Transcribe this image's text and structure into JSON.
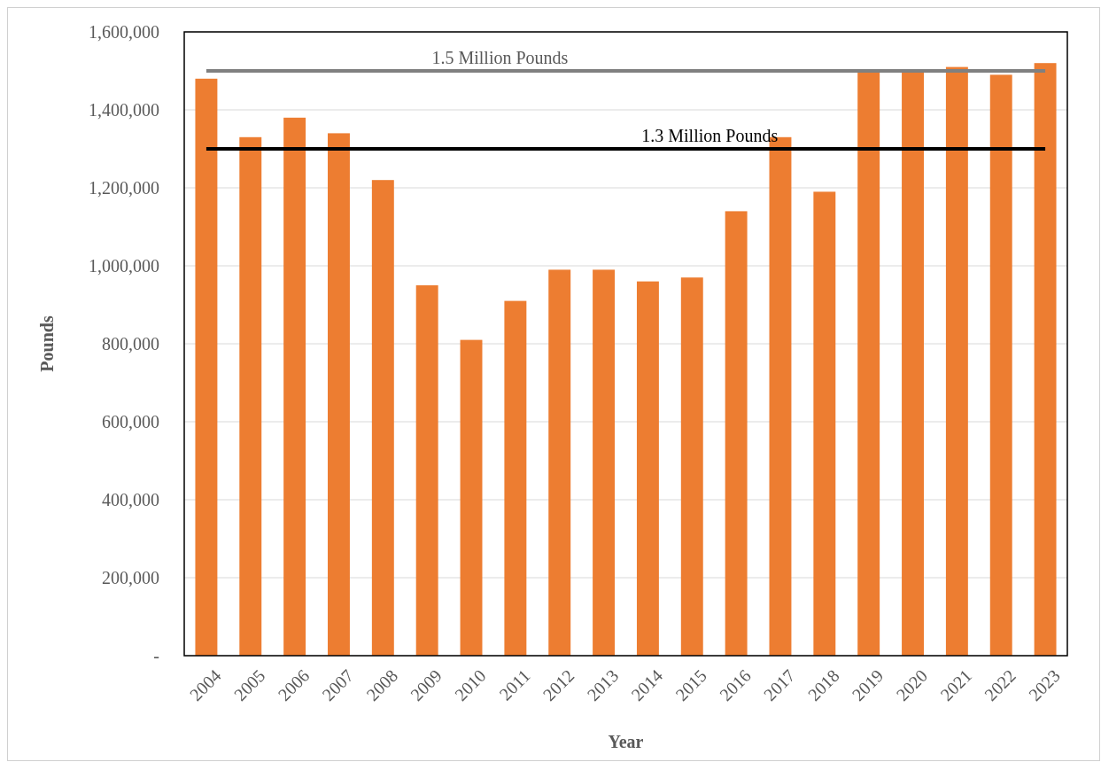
{
  "chart_data": {
    "type": "bar",
    "xlabel": "Year",
    "ylabel": "Pounds",
    "categories": [
      "2004",
      "2005",
      "2006",
      "2007",
      "2008",
      "2009",
      "2010",
      "2011",
      "2012",
      "2013",
      "2014",
      "2015",
      "2016",
      "2017",
      "2018",
      "2019",
      "2020",
      "2021",
      "2022",
      "2023"
    ],
    "values": [
      1480000,
      1330000,
      1380000,
      1340000,
      1220000,
      950000,
      810000,
      910000,
      990000,
      990000,
      960000,
      970000,
      1140000,
      1330000,
      1190000,
      1500000,
      1500000,
      1510000,
      1490000,
      1520000
    ],
    "color": "#ed7d31",
    "ylim": [
      0,
      1600000
    ],
    "yticks": [
      {
        "value": 0,
        "label": "-"
      },
      {
        "value": 200000,
        "label": "200,000"
      },
      {
        "value": 400000,
        "label": "400,000"
      },
      {
        "value": 600000,
        "label": "600,000"
      },
      {
        "value": 800000,
        "label": "800,000"
      },
      {
        "value": 1000000,
        "label": "1,000,000"
      },
      {
        "value": 1200000,
        "label": "1,200,000"
      },
      {
        "value": 1400000,
        "label": "1,400,000"
      },
      {
        "value": 1600000,
        "label": "1,600,000"
      }
    ],
    "grid": "y",
    "ref_lines": [
      {
        "axis": "y",
        "value": 1500000,
        "label": "1.5 Million Pounds",
        "color": "#808080"
      },
      {
        "axis": "y",
        "value": 1300000,
        "label": "1.3 Million Pounds",
        "color": "#000000"
      }
    ]
  }
}
